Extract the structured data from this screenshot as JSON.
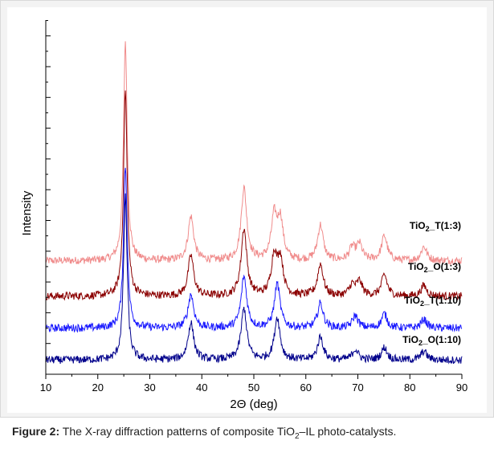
{
  "caption": {
    "label": "Figure 2:",
    "text_before_sub": " The X-ray diffraction patterns of composite TiO",
    "sub": "2",
    "text_after_sub": "–IL photo-catalysts."
  },
  "chart_data": {
    "type": "line",
    "xlabel": "2Θ (deg)",
    "ylabel": "Intensity",
    "xlim": [
      10,
      90
    ],
    "x_ticks": [
      "10",
      "20",
      "30",
      "40",
      "50",
      "60",
      "70",
      "80",
      "90"
    ],
    "y_tick_labels": false,
    "grid": false,
    "stacked_offset": true,
    "noise_level": 0.22,
    "series": [
      {
        "name": "TiO2_T(1:3)",
        "label_main": "TiO",
        "label_sub": "2",
        "label_rest": "_T(1:3)",
        "color": "#f08c8c",
        "baseline": 3.0,
        "peaks": [
          [
            25.3,
            6.2
          ],
          [
            37.9,
            1.25
          ],
          [
            48.1,
            2.05
          ],
          [
            53.9,
            1.2
          ],
          [
            55.1,
            1.1
          ],
          [
            62.8,
            1.0
          ],
          [
            68.9,
            0.35
          ],
          [
            70.3,
            0.45
          ],
          [
            75.1,
            0.7
          ],
          [
            82.7,
            0.4
          ]
        ]
      },
      {
        "name": "TiO2_O(1:3)",
        "label_main": "TiO",
        "label_sub": "2",
        "label_rest": "_O(1:3)",
        "color": "#8b0000",
        "baseline": 2.0,
        "peaks": [
          [
            25.3,
            5.8
          ],
          [
            37.9,
            1.15
          ],
          [
            48.1,
            1.9
          ],
          [
            53.9,
            1.1
          ],
          [
            55.1,
            1.0
          ],
          [
            62.8,
            0.9
          ],
          [
            68.9,
            0.3
          ],
          [
            70.3,
            0.4
          ],
          [
            75.1,
            0.6
          ],
          [
            82.7,
            0.3
          ]
        ]
      },
      {
        "name": "TiO2_T(1:10)",
        "label_main": "TiO",
        "label_sub": "2",
        "label_rest": "_T(1:10)",
        "color": "#1a1aff",
        "baseline": 1.1,
        "peaks": [
          [
            25.3,
            4.6
          ],
          [
            37.9,
            0.95
          ],
          [
            48.1,
            1.45
          ],
          [
            54.5,
            1.25
          ],
          [
            62.8,
            0.7
          ],
          [
            69.5,
            0.35
          ],
          [
            75.1,
            0.4
          ],
          [
            82.7,
            0.25
          ]
        ]
      },
      {
        "name": "TiO2_O(1:10)",
        "label_main": "TiO",
        "label_sub": "2",
        "label_rest": "_O(1:10)",
        "color": "#00008b",
        "baseline": 0.2,
        "peaks": [
          [
            25.3,
            4.6
          ],
          [
            37.9,
            1.05
          ],
          [
            48.1,
            1.45
          ],
          [
            54.5,
            1.2
          ],
          [
            62.8,
            0.65
          ],
          [
            69.5,
            0.3
          ],
          [
            75.1,
            0.35
          ],
          [
            82.7,
            0.25
          ]
        ]
      }
    ]
  }
}
